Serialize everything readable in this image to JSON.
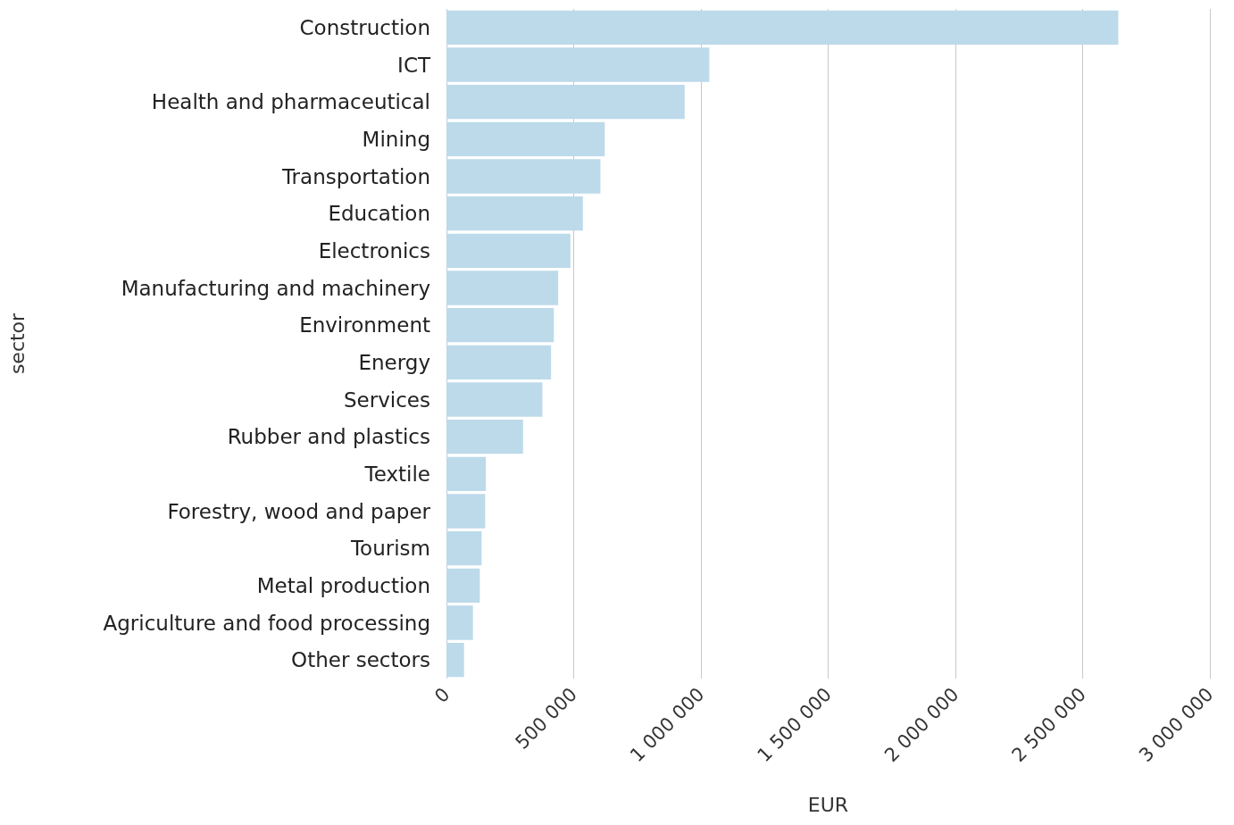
{
  "chart_data": {
    "type": "bar",
    "orientation": "horizontal",
    "xlabel": "EUR",
    "ylabel": "sector",
    "categories": [
      "Construction",
      "ICT",
      "Health and pharmaceutical",
      "Mining",
      "Transportation",
      "Education",
      "Electronics",
      "Manufacturing and machinery",
      "Environment",
      "Energy",
      "Services",
      "Rubber and plastics",
      "Textile",
      "Forestry, wood and paper",
      "Tourism",
      "Metal production",
      "Agriculture and food processing",
      "Other sectors"
    ],
    "values": [
      2640000,
      1033000,
      936000,
      622000,
      605000,
      536000,
      487000,
      439000,
      422000,
      411000,
      377000,
      301000,
      155000,
      152000,
      138000,
      131000,
      104000,
      69000
    ],
    "color": "#bcdaea",
    "xlim": [
      0,
      3000000
    ],
    "xticks": [
      0,
      {
        "value": 500000,
        "label": "500 000"
      },
      {
        "value": 1000000,
        "label": "1 000 000"
      },
      {
        "value": 1500000,
        "label": "1 500 000"
      },
      {
        "value": 2000000,
        "label": "2 000 000"
      },
      {
        "value": 2500000,
        "label": "2 500 000"
      },
      {
        "value": 3000000,
        "label": "3 000 000"
      }
    ],
    "grid": "x"
  }
}
